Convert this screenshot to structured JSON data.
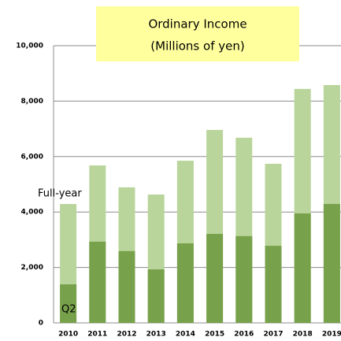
{
  "chart_data": {
    "type": "bar",
    "title": "Ordinary Income",
    "subtitle": "(Millions of yen)",
    "categories": [
      "2010",
      "2011",
      "2012",
      "2013",
      "2014",
      "2015",
      "2016",
      "2017",
      "2018",
      "2019"
    ],
    "series": [
      {
        "name": "Full-year",
        "color": "#b9d59b",
        "values": [
          4290,
          5680,
          4890,
          4630,
          5850,
          6960,
          6680,
          5740,
          8440,
          8580
        ]
      },
      {
        "name": "Q2",
        "color": "#78a14b",
        "values": [
          1390,
          2930,
          2590,
          1930,
          2870,
          3210,
          3130,
          2780,
          3950,
          4290
        ]
      }
    ],
    "ylim": [
      0,
      10000
    ],
    "yticks": [
      0,
      {
        "value": 2000,
        "label": "2,000"
      },
      {
        "value": 4000,
        "label": "4,000"
      },
      {
        "value": 6000,
        "label": "6,000"
      },
      {
        "value": 8000,
        "label": "8,000"
      },
      {
        "value": 10000,
        "label": "10,000"
      }
    ],
    "grid": true
  }
}
